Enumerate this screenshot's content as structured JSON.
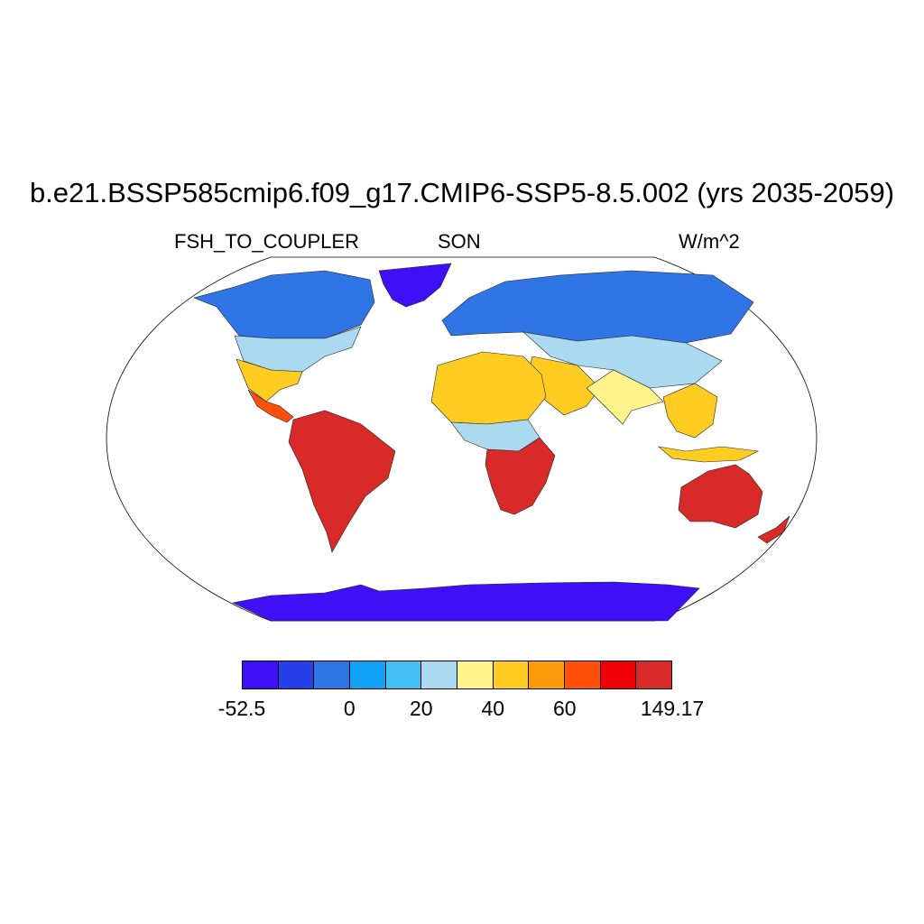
{
  "title": "b.e21.BSSP585cmip6.f09_g17.CMIP6-SSP5-8.5.002 (yrs 2035-2059)",
  "variable": "FSH_TO_COUPLER",
  "season": "SON",
  "units": "W/m^2",
  "projection": "robinson",
  "colorbar": {
    "colors": [
      "#3f0ff5",
      "#2540e8",
      "#2f75e5",
      "#12a2f5",
      "#44c2f5",
      "#aad9f0",
      "#fff58c",
      "#ffcc22",
      "#ff9a0a",
      "#ff4f0a",
      "#f00008",
      "#d92a2a"
    ],
    "tick_labels": [
      "-52.5",
      "0",
      "20",
      "40",
      "60",
      "149.17"
    ],
    "tick_bin_edges": [
      0,
      3,
      5,
      7,
      9,
      12
    ]
  },
  "regions": [
    {
      "name": "greenland",
      "level": 0
    },
    {
      "name": "antarctica",
      "level": 0
    },
    {
      "name": "canada-arctic",
      "level": 2
    },
    {
      "name": "northern-eurasia",
      "level": 2
    },
    {
      "name": "north-america-mid",
      "level": 5
    },
    {
      "name": "north-america-south",
      "level": 7
    },
    {
      "name": "central-america",
      "level": 9
    },
    {
      "name": "south-america",
      "level": 11
    },
    {
      "name": "sahara",
      "level": 7
    },
    {
      "name": "central-africa",
      "level": 5
    },
    {
      "name": "southern-africa",
      "level": 11
    },
    {
      "name": "middle-east",
      "level": 7
    },
    {
      "name": "central-asia",
      "level": 5
    },
    {
      "name": "south-asia",
      "level": 6
    },
    {
      "name": "southeast-asia",
      "level": 7
    },
    {
      "name": "australia",
      "level": 11
    }
  ]
}
